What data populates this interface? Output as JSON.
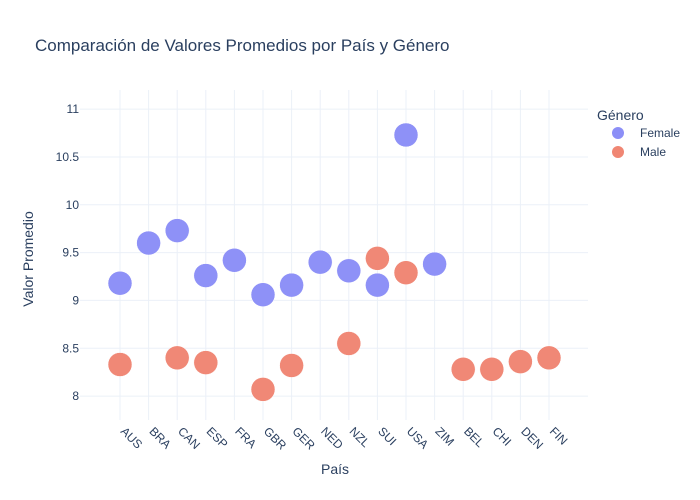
{
  "chart_data": {
    "type": "scatter",
    "title": "Comparación de Valores Promedios por País y Género",
    "xlabel": "País",
    "ylabel": "Valor Promedio",
    "categories": [
      "AUS",
      "BRA",
      "CAN",
      "ESP",
      "FRA",
      "GBR",
      "GER",
      "NED",
      "NZL",
      "SUI",
      "USA",
      "ZIM",
      "BEL",
      "CHI",
      "DEN",
      "FIN"
    ],
    "yticks": [
      8,
      8.5,
      9,
      9.5,
      10,
      10.5,
      11
    ],
    "ylim": [
      7.75,
      11.2
    ],
    "grid": true,
    "legend": {
      "title": "Género",
      "position": "top-right"
    },
    "series": [
      {
        "name": "Female",
        "color": "#8c8ff7",
        "points": [
          {
            "x": "AUS",
            "y": 9.18
          },
          {
            "x": "BRA",
            "y": 9.6
          },
          {
            "x": "CAN",
            "y": 9.73
          },
          {
            "x": "ESP",
            "y": 9.26
          },
          {
            "x": "FRA",
            "y": 9.42
          },
          {
            "x": "GBR",
            "y": 9.06
          },
          {
            "x": "GER",
            "y": 9.16
          },
          {
            "x": "NED",
            "y": 9.4
          },
          {
            "x": "NZL",
            "y": 9.31
          },
          {
            "x": "SUI",
            "y": 9.16
          },
          {
            "x": "USA",
            "y": 10.73
          },
          {
            "x": "ZIM",
            "y": 9.38
          }
        ]
      },
      {
        "name": "Male",
        "color": "#f08673",
        "points": [
          {
            "x": "AUS",
            "y": 8.33
          },
          {
            "x": "CAN",
            "y": 8.4
          },
          {
            "x": "ESP",
            "y": 8.35
          },
          {
            "x": "GBR",
            "y": 8.07
          },
          {
            "x": "GER",
            "y": 8.32
          },
          {
            "x": "NZL",
            "y": 8.55
          },
          {
            "x": "SUI",
            "y": 9.44
          },
          {
            "x": "USA",
            "y": 9.29
          },
          {
            "x": "BEL",
            "y": 8.28
          },
          {
            "x": "CHI",
            "y": 8.28
          },
          {
            "x": "DEN",
            "y": 8.36
          },
          {
            "x": "FIN",
            "y": 8.4
          }
        ]
      }
    ]
  }
}
